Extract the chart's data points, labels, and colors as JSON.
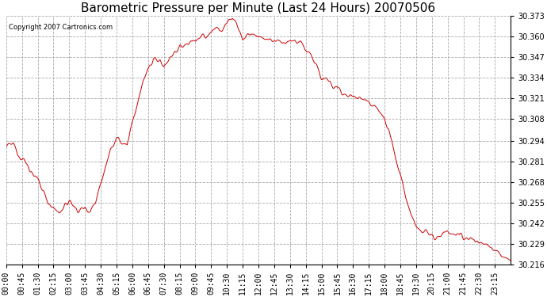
{
  "title": "Barometric Pressure per Minute (Last 24 Hours) 20070506",
  "copyright_text": "Copyright 2007 Cartronics.com",
  "line_color": "#cc0000",
  "background_color": "#ffffff",
  "grid_color": "#aaaaaa",
  "grid_linestyle": "--",
  "ylim_min": 30.216,
  "ylim_max": 30.373,
  "yticks": [
    30.373,
    30.36,
    30.347,
    30.334,
    30.321,
    30.308,
    30.294,
    30.281,
    30.268,
    30.255,
    30.242,
    30.229,
    30.216
  ],
  "xtick_positions": [
    0,
    45,
    90,
    135,
    180,
    225,
    270,
    315,
    360,
    405,
    450,
    495,
    540,
    585,
    630,
    675,
    720,
    765,
    810,
    855,
    900,
    945,
    990,
    1035,
    1080,
    1125,
    1170,
    1215,
    1260,
    1305,
    1350,
    1395
  ],
  "xtick_labels": [
    "00:00",
    "00:45",
    "01:30",
    "02:15",
    "03:00",
    "03:45",
    "04:30",
    "05:15",
    "06:00",
    "06:45",
    "07:30",
    "08:15",
    "09:00",
    "09:45",
    "10:30",
    "11:15",
    "12:00",
    "12:45",
    "13:30",
    "14:15",
    "15:00",
    "15:45",
    "16:30",
    "17:15",
    "18:00",
    "18:45",
    "19:30",
    "20:15",
    "21:00",
    "21:45",
    "22:30",
    "23:15"
  ],
  "title_fontsize": 11,
  "tick_fontsize": 7,
  "copyright_fontsize": 6,
  "anchors_t": [
    0,
    20,
    40,
    60,
    80,
    100,
    120,
    135,
    150,
    165,
    180,
    195,
    210,
    225,
    240,
    255,
    270,
    285,
    300,
    315,
    330,
    345,
    360,
    390,
    420,
    450,
    480,
    510,
    540,
    570,
    600,
    615,
    630,
    645,
    660,
    675,
    690,
    720,
    750,
    780,
    810,
    840,
    870,
    900,
    930,
    960,
    990,
    1020,
    1050,
    1080,
    1100,
    1110,
    1120,
    1130,
    1140,
    1150,
    1160,
    1170,
    1180,
    1200,
    1220,
    1240,
    1260,
    1290,
    1320,
    1350,
    1380,
    1395,
    1410,
    1439
  ],
  "anchors_v": [
    30.29,
    30.292,
    30.285,
    30.279,
    30.272,
    30.265,
    30.256,
    30.251,
    30.249,
    30.251,
    30.257,
    30.252,
    30.25,
    30.252,
    30.25,
    30.256,
    30.268,
    30.28,
    30.289,
    30.295,
    30.293,
    30.291,
    30.306,
    30.33,
    30.347,
    30.342,
    30.35,
    30.355,
    30.358,
    30.36,
    30.366,
    30.364,
    30.368,
    30.373,
    30.367,
    30.358,
    30.362,
    30.36,
    30.358,
    30.356,
    30.357,
    30.356,
    30.349,
    30.334,
    30.33,
    30.325,
    30.322,
    30.32,
    30.318,
    30.308,
    30.295,
    30.283,
    30.275,
    30.268,
    30.26,
    30.253,
    30.246,
    30.242,
    30.238,
    30.237,
    30.234,
    30.234,
    30.236,
    30.233,
    30.233,
    30.23,
    30.228,
    30.225,
    30.222,
    30.218
  ]
}
